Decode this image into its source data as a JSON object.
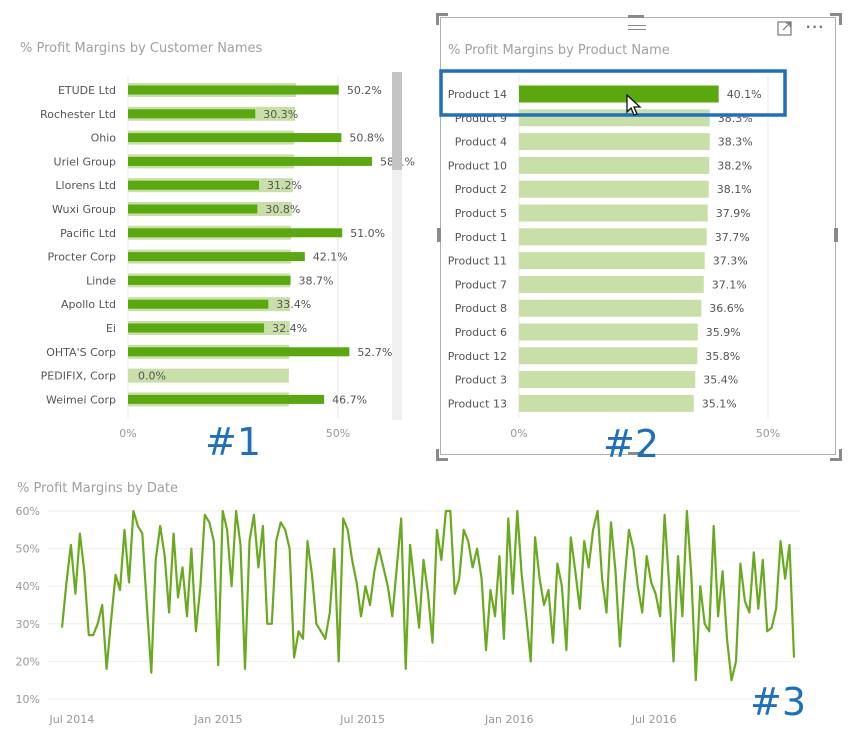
{
  "labels": {
    "big1": "#1",
    "big2": "#2",
    "big3": "#3"
  },
  "colors": {
    "bar_dark": "#59a80e",
    "bar_light": "#c8e0a8",
    "line": "#6aaa1e",
    "selection": "#1f6fc0",
    "text": "#555555",
    "muted": "#999999"
  },
  "icons": {
    "move": "drag-handle-icon",
    "focus": "focus-mode-icon",
    "more": "more-options-icon"
  },
  "chart_data": [
    {
      "type": "bar",
      "orientation": "horizontal",
      "title": "% Profit Margins by Customer Names",
      "categories": [
        "ETUDE Ltd",
        "Rochester Ltd",
        "Ohio",
        "Uriel Group",
        "Llorens Ltd",
        "Wuxi Group",
        "Pacific Ltd",
        "Procter Corp",
        "Linde",
        "Apollo Ltd",
        "Ei",
        "OHTA'S Corp",
        "PEDIFIX, Corp",
        "Weimei Corp"
      ],
      "series": [
        {
          "role": "background",
          "values": [
            40.0,
            39.8,
            39.5,
            39.5,
            39.3,
            39.0,
            38.8,
            38.8,
            38.6,
            38.6,
            38.5,
            38.4,
            38.3,
            38.3
          ]
        },
        {
          "role": "foreground",
          "values": [
            50.2,
            30.3,
            50.8,
            58.1,
            31.2,
            30.8,
            51.0,
            42.1,
            38.7,
            33.4,
            32.4,
            52.7,
            0.0,
            46.7
          ]
        }
      ],
      "data_labels": [
        "50.2%",
        "30.3%",
        "50.8%",
        "58.1%",
        "31.2%",
        "30.8%",
        "51.0%",
        "42.1%",
        "38.7%",
        "33.4%",
        "32.4%",
        "52.7%",
        "0.0%",
        "46.7%"
      ],
      "x_ticks": [
        "0%",
        "50%"
      ],
      "xlim": [
        0,
        65
      ],
      "grid": true
    },
    {
      "type": "bar",
      "orientation": "horizontal",
      "title": "% Profit Margins by Product Name",
      "categories": [
        "Product 14",
        "Product 9",
        "Product 4",
        "Product 10",
        "Product 2",
        "Product 5",
        "Product 1",
        "Product 11",
        "Product 7",
        "Product 8",
        "Product 6",
        "Product 12",
        "Product 3",
        "Product 13"
      ],
      "values": [
        40.1,
        38.3,
        38.3,
        38.2,
        38.1,
        37.9,
        37.7,
        37.3,
        37.1,
        36.6,
        35.9,
        35.8,
        35.4,
        35.1
      ],
      "data_labels": [
        "40.1%",
        "38.3%",
        "38.3%",
        "38.2%",
        "38.1%",
        "37.9%",
        "37.7%",
        "37.3%",
        "37.1%",
        "36.6%",
        "35.9%",
        "35.8%",
        "35.4%",
        "35.1%"
      ],
      "highlighted": "Product 14",
      "x_ticks": [
        "0%",
        "50%"
      ],
      "xlim": [
        0,
        50
      ],
      "grid": true
    },
    {
      "type": "line",
      "title": "% Profit Margins by Date",
      "x_ticks": [
        "Jul 2014",
        "Jan 2015",
        "Jul 2015",
        "Jan 2016",
        "Jul 2016"
      ],
      "y_ticks": [
        "60%",
        "50%",
        "40%",
        "30%",
        "20%",
        "10%"
      ],
      "ylim": [
        10,
        60
      ],
      "x_start": "2014-06-01",
      "x_end": "2016-12-31",
      "values": [
        29,
        41,
        51,
        38,
        54,
        44,
        27,
        27,
        30,
        35,
        18,
        31,
        43,
        39,
        55,
        41,
        60,
        56,
        54,
        35,
        17,
        47,
        56,
        48,
        33,
        54,
        37,
        45,
        32,
        50,
        28,
        40,
        59,
        57,
        52,
        19,
        60,
        55,
        40,
        60,
        51,
        18,
        52,
        59,
        45,
        56,
        30,
        30,
        52,
        57,
        55,
        50,
        21,
        28,
        26,
        52,
        43,
        30,
        28,
        26,
        33,
        50,
        20,
        58,
        55,
        47,
        41,
        32,
        40,
        35,
        44,
        50,
        45,
        40,
        32,
        45,
        58,
        18,
        51,
        40,
        29,
        47,
        38,
        25,
        55,
        47,
        60,
        60,
        38,
        42,
        55,
        52,
        45,
        50,
        42,
        23,
        39,
        32,
        48,
        26,
        58,
        38,
        60,
        43,
        32,
        20,
        53,
        42,
        35,
        39,
        25,
        46,
        40,
        23,
        53,
        44,
        34,
        52,
        45,
        55,
        60,
        42,
        33,
        57,
        44,
        24,
        41,
        55,
        50,
        40,
        33,
        48,
        41,
        38,
        32,
        59,
        41,
        20,
        48,
        32,
        60,
        43,
        15,
        40,
        30,
        28,
        56,
        32,
        44,
        26,
        15,
        20,
        46,
        36,
        33,
        49,
        34,
        47,
        28,
        29,
        34,
        52,
        42,
        51,
        21
      ]
    }
  ]
}
